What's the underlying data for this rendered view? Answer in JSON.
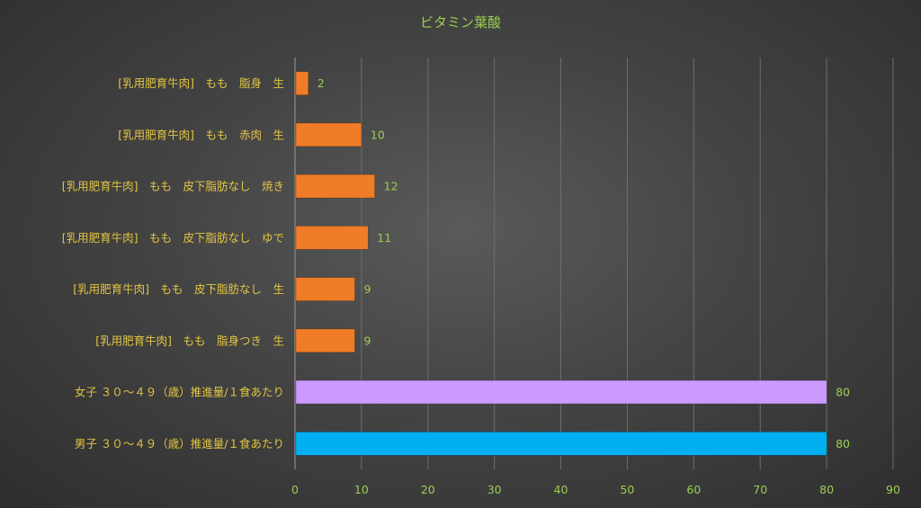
{
  "chart_data": {
    "type": "bar",
    "orientation": "horizontal",
    "title": "ビタミン葉酸",
    "categories": [
      "[乳用肥育牛肉]　もも　脂身　生",
      "[乳用肥育牛肉]　もも　赤肉　生",
      "[乳用肥育牛肉]　もも　皮下脂肪なし　焼き",
      "[乳用肥育牛肉]　もも　皮下脂肪なし　ゆで",
      "[乳用肥育牛肉]　もも　皮下脂肪なし　生",
      "[乳用肥育牛肉]　もも　脂身つき　生",
      "女子 ３０～４９（歳）推進量/１食あたり",
      "男子 ３０～４９（歳）推進量/１食あたり"
    ],
    "values": [
      2,
      10,
      12,
      11,
      9,
      9,
      80,
      80
    ],
    "bar_colors": [
      "#f07c28",
      "#f07c28",
      "#f07c28",
      "#f07c28",
      "#f07c28",
      "#f07c28",
      "#cc99ff",
      "#00b0f0"
    ],
    "xlim": [
      0,
      90
    ],
    "xticks": [
      0,
      10,
      20,
      30,
      40,
      50,
      60,
      70,
      80,
      90
    ],
    "grid": true,
    "xlabel": "",
    "ylabel": ""
  },
  "colors": {
    "title": "#9bcf52",
    "category_label": "#e2c542",
    "tick_label": "#9bcf52",
    "data_label": "#9bcf52"
  }
}
